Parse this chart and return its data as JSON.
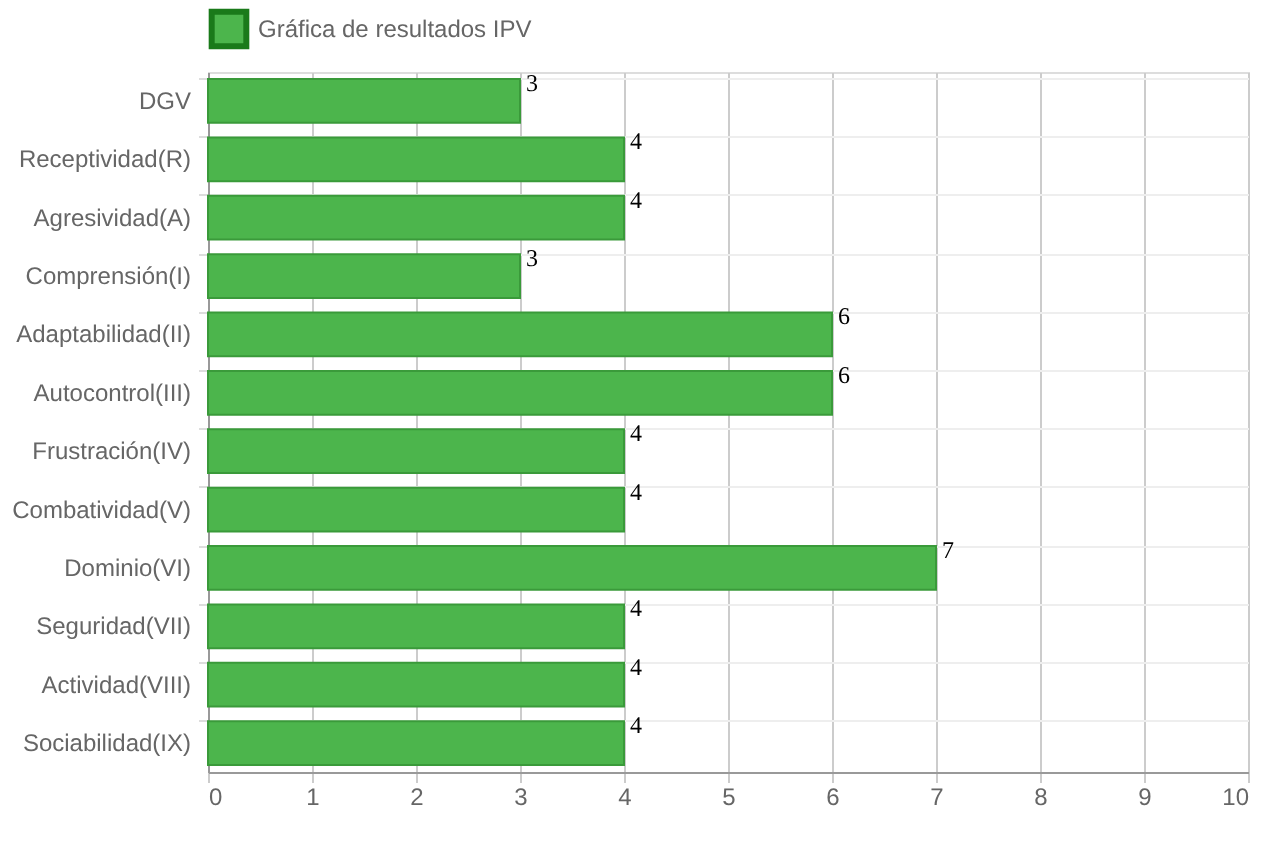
{
  "chart_data": {
    "type": "bar",
    "orientation": "horizontal",
    "categories": [
      "DGV",
      "Receptividad(R)",
      "Agresividad(A)",
      "Comprensión(I)",
      "Adaptabilidad(II)",
      "Autocontrol(III)",
      "Frustración(IV)",
      "Combatividad(V)",
      "Dominio(VI)",
      "Seguridad(VII)",
      "Actividad(VIII)",
      "Sociabilidad(IX)"
    ],
    "series": [
      {
        "name": "Gráfica de resultados IPV",
        "color": "#4cb54c",
        "values": [
          3,
          4,
          4,
          3,
          6,
          6,
          4,
          4,
          7,
          4,
          4,
          4
        ]
      }
    ],
    "xlim": [
      0,
      10
    ],
    "xticks": [
      0,
      1,
      2,
      3,
      4,
      5,
      6,
      7,
      8,
      9,
      10
    ],
    "grid": true,
    "legend": "top",
    "data_labels": true
  }
}
